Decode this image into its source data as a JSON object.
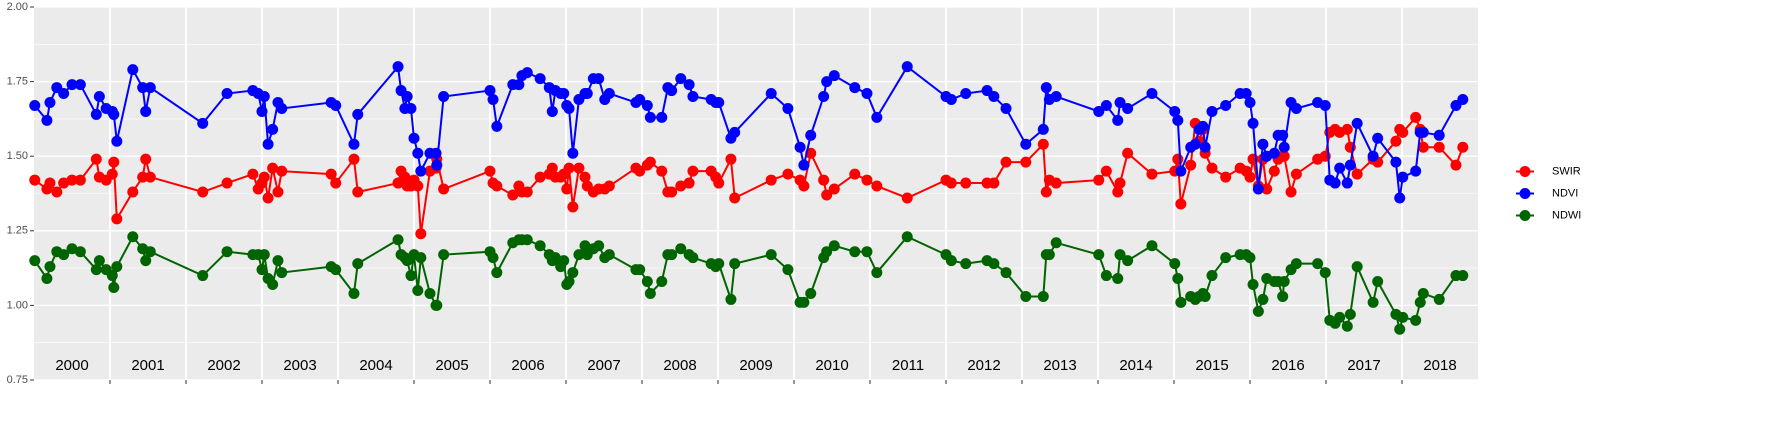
{
  "chart_data": {
    "type": "line",
    "x": [
      2000.01,
      2000.17,
      2000.21,
      2000.3,
      2000.39,
      2000.5,
      2000.61,
      2000.82,
      2000.86,
      2000.95,
      2001.03,
      2001.05,
      2001.09,
      2001.3,
      2001.43,
      2001.47,
      2001.53,
      2002.22,
      2002.54,
      2002.88,
      2002.95,
      2003.0,
      2003.03,
      2003.08,
      2003.14,
      2003.21,
      2003.26,
      2003.91,
      2003.97,
      2004.21,
      2004.26,
      2004.79,
      2004.83,
      2004.88,
      2004.91,
      2004.96,
      2005.0,
      2005.05,
      2005.09,
      2005.21,
      2005.29,
      2005.3,
      2005.39,
      2006.0,
      2006.04,
      2006.09,
      2006.3,
      2006.38,
      2006.42,
      2006.49,
      2006.66,
      2006.78,
      2006.82,
      2006.86,
      2006.93,
      2006.97,
      2007.01,
      2007.04,
      2007.09,
      2007.17,
      2007.25,
      2007.28,
      2007.36,
      2007.43,
      2007.51,
      2007.57,
      2007.92,
      2007.97,
      2008.07,
      2008.11,
      2008.26,
      2008.34,
      2008.39,
      2008.51,
      2008.62,
      2008.67,
      2008.91,
      2008.97,
      2009.01,
      2009.17,
      2009.22,
      2009.7,
      2009.92,
      2010.08,
      2010.13,
      2010.22,
      2010.39,
      2010.43,
      2010.53,
      2010.8,
      2010.96,
      2011.09,
      2011.49,
      2012.0,
      2012.07,
      2012.26,
      2012.54,
      2012.63,
      2012.79,
      2013.05,
      2013.28,
      2013.32,
      2013.36,
      2013.45,
      2014.01,
      2014.11,
      2014.26,
      2014.29,
      2014.39,
      2014.71,
      2015.01,
      2015.05,
      2015.09,
      2015.22,
      2015.28,
      2015.33,
      2015.38,
      2015.41,
      2015.5,
      2015.68,
      2015.87,
      2015.95,
      2016.0,
      2016.04,
      2016.11,
      2016.17,
      2016.22,
      2016.32,
      2016.37,
      2016.43,
      2016.45,
      2016.54,
      2016.61,
      2016.89,
      2016.99,
      2017.05,
      2017.12,
      2017.18,
      2017.28,
      2017.32,
      2017.41,
      2017.62,
      2017.68,
      2017.92,
      2017.97,
      2018.01,
      2018.18,
      2018.24,
      2018.28,
      2018.49,
      2018.71,
      2018.8
    ],
    "series": [
      {
        "name": "SWIR",
        "color": "#ff0000",
        "values": [
          1.42,
          1.39,
          1.41,
          1.38,
          1.41,
          1.42,
          1.42,
          1.49,
          1.43,
          1.42,
          1.44,
          1.48,
          1.29,
          1.38,
          1.43,
          1.49,
          1.43,
          1.38,
          1.41,
          1.44,
          1.39,
          1.41,
          1.43,
          1.36,
          1.46,
          1.38,
          1.45,
          1.44,
          1.41,
          1.49,
          1.38,
          1.41,
          1.45,
          1.43,
          1.4,
          1.4,
          1.42,
          1.4,
          1.24,
          1.45,
          1.46,
          1.49,
          1.39,
          1.45,
          1.41,
          1.4,
          1.37,
          1.4,
          1.38,
          1.38,
          1.43,
          1.44,
          1.46,
          1.43,
          1.43,
          1.44,
          1.39,
          1.46,
          1.33,
          1.46,
          1.43,
          1.4,
          1.38,
          1.39,
          1.39,
          1.4,
          1.46,
          1.45,
          1.47,
          1.48,
          1.45,
          1.38,
          1.38,
          1.4,
          1.41,
          1.45,
          1.45,
          1.43,
          1.41,
          1.49,
          1.36,
          1.42,
          1.44,
          1.42,
          1.4,
          1.51,
          1.42,
          1.37,
          1.39,
          1.44,
          1.42,
          1.4,
          1.36,
          1.42,
          1.41,
          1.41,
          1.41,
          1.41,
          1.48,
          1.48,
          1.54,
          1.38,
          1.42,
          1.41,
          1.42,
          1.45,
          1.38,
          1.41,
          1.51,
          1.44,
          1.45,
          1.49,
          1.34,
          1.47,
          1.61,
          1.55,
          1.59,
          1.51,
          1.46,
          1.43,
          1.46,
          1.45,
          1.43,
          1.49,
          1.4,
          1.49,
          1.39,
          1.45,
          1.49,
          1.5,
          1.5,
          1.38,
          1.44,
          1.49,
          1.5,
          1.58,
          1.59,
          1.58,
          1.59,
          1.53,
          1.44,
          1.49,
          1.48,
          1.55,
          1.59,
          1.58,
          1.63,
          1.59,
          1.53,
          1.53,
          1.47,
          1.53
        ]
      },
      {
        "name": "NDVI",
        "color": "#0000ff",
        "values": [
          1.67,
          1.62,
          1.68,
          1.73,
          1.71,
          1.74,
          1.74,
          1.64,
          1.7,
          1.66,
          1.65,
          1.64,
          1.55,
          1.79,
          1.73,
          1.65,
          1.73,
          1.61,
          1.71,
          1.72,
          1.71,
          1.65,
          1.7,
          1.54,
          1.59,
          1.68,
          1.66,
          1.68,
          1.67,
          1.54,
          1.64,
          1.8,
          1.72,
          1.66,
          1.7,
          1.66,
          1.56,
          1.51,
          1.45,
          1.51,
          1.51,
          1.47,
          1.7,
          1.72,
          1.69,
          1.6,
          1.74,
          1.74,
          1.77,
          1.78,
          1.76,
          1.73,
          1.65,
          1.72,
          1.71,
          1.71,
          1.67,
          1.66,
          1.51,
          1.69,
          1.71,
          1.71,
          1.76,
          1.76,
          1.69,
          1.71,
          1.68,
          1.69,
          1.67,
          1.63,
          1.63,
          1.73,
          1.72,
          1.76,
          1.74,
          1.7,
          1.69,
          1.68,
          1.68,
          1.56,
          1.58,
          1.71,
          1.66,
          1.53,
          1.47,
          1.57,
          1.7,
          1.75,
          1.77,
          1.73,
          1.71,
          1.63,
          1.8,
          1.7,
          1.69,
          1.71,
          1.72,
          1.7,
          1.66,
          1.54,
          1.59,
          1.73,
          1.69,
          1.7,
          1.65,
          1.67,
          1.62,
          1.68,
          1.66,
          1.71,
          1.65,
          1.62,
          1.45,
          1.53,
          1.54,
          1.59,
          1.6,
          1.53,
          1.65,
          1.67,
          1.71,
          1.71,
          1.68,
          1.61,
          1.39,
          1.54,
          1.5,
          1.51,
          1.57,
          1.57,
          1.53,
          1.68,
          1.66,
          1.68,
          1.67,
          1.42,
          1.41,
          1.46,
          1.41,
          1.47,
          1.61,
          1.5,
          1.56,
          1.48,
          1.36,
          1.43,
          1.45,
          1.58,
          1.58,
          1.57,
          1.67,
          1.69
        ]
      },
      {
        "name": "NDWI",
        "color": "#006400",
        "values": [
          1.15,
          1.09,
          1.13,
          1.18,
          1.17,
          1.19,
          1.18,
          1.12,
          1.15,
          1.12,
          1.1,
          1.06,
          1.13,
          1.23,
          1.19,
          1.15,
          1.18,
          1.1,
          1.18,
          1.17,
          1.17,
          1.12,
          1.17,
          1.09,
          1.07,
          1.15,
          1.11,
          1.13,
          1.12,
          1.04,
          1.14,
          1.22,
          1.17,
          1.16,
          1.15,
          1.1,
          1.17,
          1.05,
          1.16,
          1.04,
          1.0,
          1.0,
          1.17,
          1.18,
          1.16,
          1.11,
          1.21,
          1.22,
          1.22,
          1.22,
          1.2,
          1.17,
          1.15,
          1.16,
          1.13,
          1.15,
          1.07,
          1.08,
          1.11,
          1.17,
          1.2,
          1.17,
          1.19,
          1.2,
          1.16,
          1.17,
          1.12,
          1.12,
          1.08,
          1.04,
          1.08,
          1.17,
          1.17,
          1.19,
          1.17,
          1.16,
          1.14,
          1.13,
          1.14,
          1.02,
          1.14,
          1.17,
          1.12,
          1.01,
          1.01,
          1.04,
          1.16,
          1.18,
          1.2,
          1.18,
          1.18,
          1.11,
          1.23,
          1.17,
          1.15,
          1.14,
          1.15,
          1.14,
          1.11,
          1.03,
          1.03,
          1.17,
          1.17,
          1.21,
          1.17,
          1.1,
          1.09,
          1.17,
          1.15,
          1.2,
          1.14,
          1.09,
          1.01,
          1.03,
          1.02,
          1.03,
          1.04,
          1.03,
          1.1,
          1.16,
          1.17,
          1.17,
          1.16,
          1.07,
          0.98,
          1.02,
          1.09,
          1.08,
          1.08,
          1.03,
          1.08,
          1.12,
          1.14,
          1.14,
          1.11,
          0.95,
          0.94,
          0.96,
          0.93,
          0.97,
          1.13,
          1.01,
          1.08,
          0.97,
          0.92,
          0.96,
          0.95,
          1.01,
          1.04,
          1.02,
          1.1,
          1.1
        ]
      }
    ],
    "xlim": [
      2000,
      2019
    ],
    "xticks": [
      {
        "value": 2000.5,
        "label": "2000"
      },
      {
        "value": 2001.5,
        "label": "2001"
      },
      {
        "value": 2002.5,
        "label": "2002"
      },
      {
        "value": 2003.5,
        "label": "2003"
      },
      {
        "value": 2004.5,
        "label": "2004"
      },
      {
        "value": 2005.5,
        "label": "2005"
      },
      {
        "value": 2006.5,
        "label": "2006"
      },
      {
        "value": 2007.5,
        "label": "2007"
      },
      {
        "value": 2008.5,
        "label": "2008"
      },
      {
        "value": 2009.5,
        "label": "2009"
      },
      {
        "value": 2010.5,
        "label": "2010"
      },
      {
        "value": 2011.5,
        "label": "2011"
      },
      {
        "value": 2012.5,
        "label": "2012"
      },
      {
        "value": 2013.5,
        "label": "2013"
      },
      {
        "value": 2014.5,
        "label": "2014"
      },
      {
        "value": 2015.5,
        "label": "2015"
      },
      {
        "value": 2016.5,
        "label": "2016"
      },
      {
        "value": 2017.5,
        "label": "2017"
      },
      {
        "value": 2018.5,
        "label": "2018"
      }
    ],
    "ylim": [
      0.75,
      2.0
    ],
    "yticks": [
      {
        "value": 0.75,
        "label": "0.75"
      },
      {
        "value": 1.0,
        "label": "1.00"
      },
      {
        "value": 1.25,
        "label": "1.25"
      },
      {
        "value": 1.5,
        "label": "1.50"
      },
      {
        "value": 1.75,
        "label": "1.75"
      },
      {
        "value": 2.0,
        "label": "2.00"
      }
    ],
    "grid": true,
    "legend": "right"
  }
}
